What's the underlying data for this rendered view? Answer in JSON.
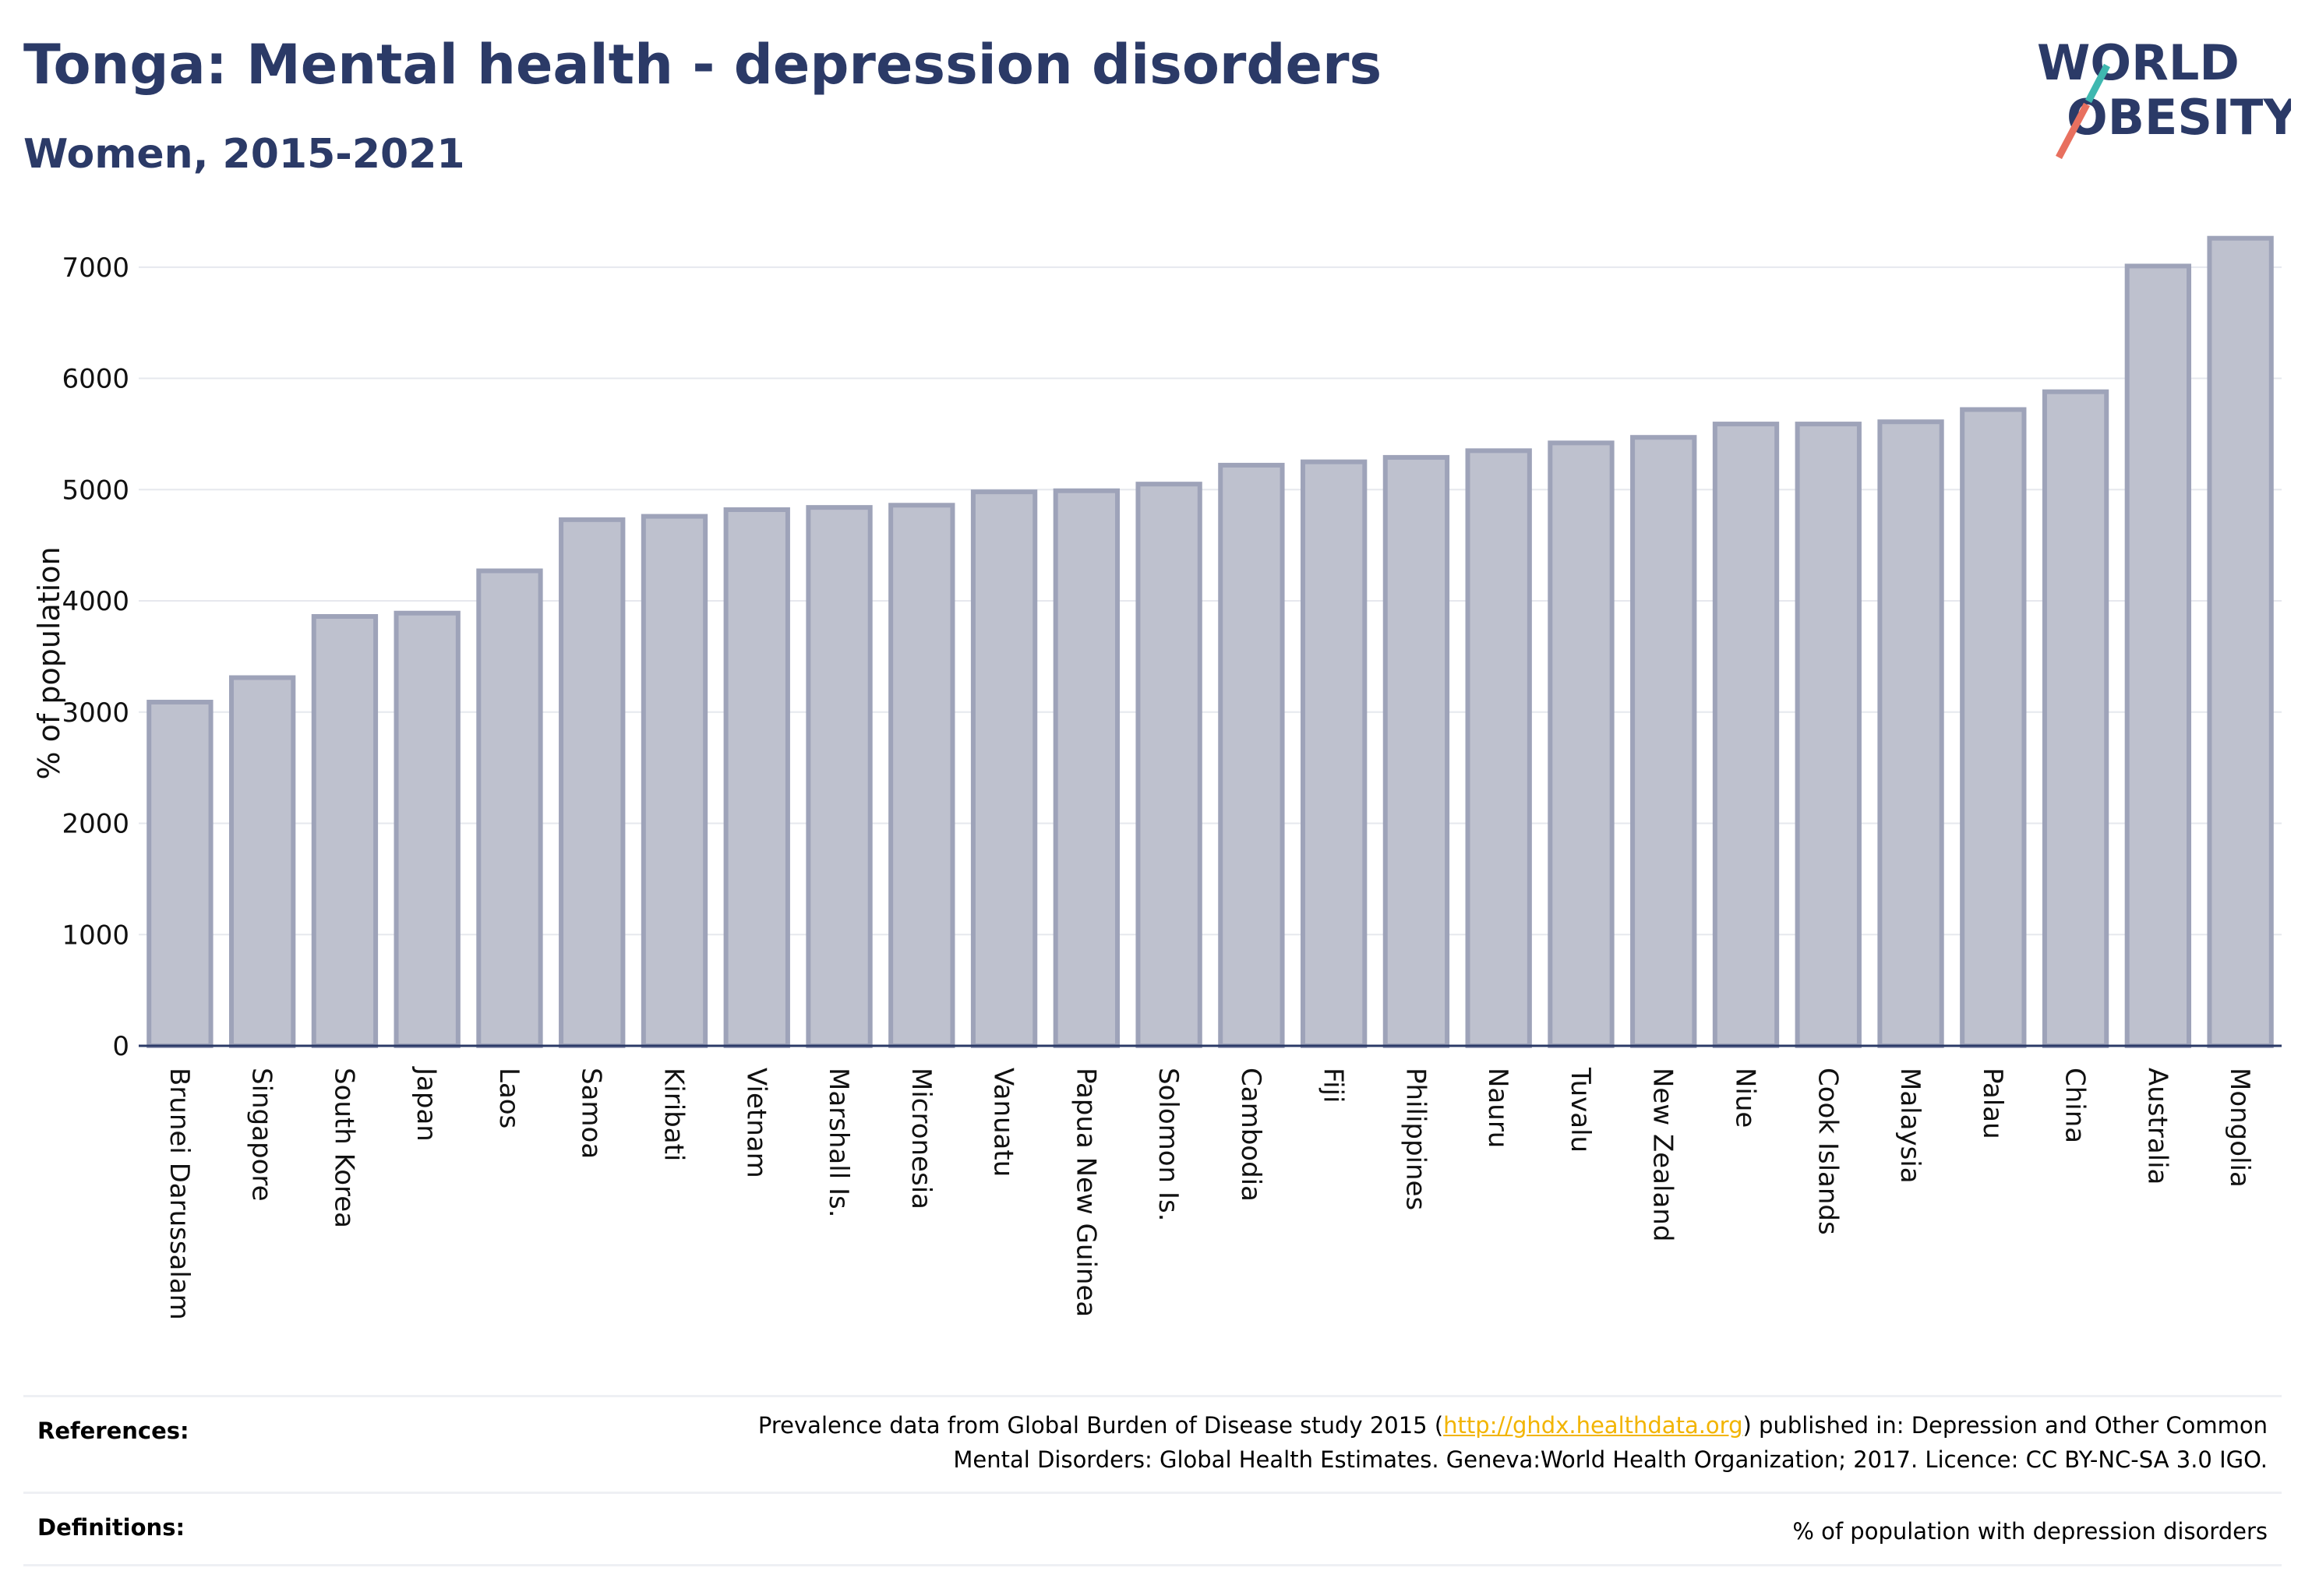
{
  "header": {
    "title": "Tonga: Mental health - depression disorders",
    "subtitle": "Women, 2015-2021"
  },
  "logo": {
    "line1": "WORLD",
    "line2": "OBESITY",
    "colors": {
      "text": "#2b3a67",
      "slash_red": "#e8705f",
      "slash_teal": "#3fb8b0"
    }
  },
  "chart_data": {
    "type": "bar",
    "title": "",
    "xlabel": "",
    "ylabel": "% of population",
    "ylim": [
      0,
      7300
    ],
    "yticks": [
      0,
      1000,
      2000,
      3000,
      4000,
      5000,
      6000,
      7000
    ],
    "grid": true,
    "categories": [
      "Brunei Darussalam",
      "Singapore",
      "South Korea",
      "Japan",
      "Laos",
      "Samoa",
      "Kiribati",
      "Vietnam",
      "Marshall Is.",
      "Micronesia",
      "Vanuatu",
      "Papua New Guinea",
      "Solomon Is.",
      "Cambodia",
      "Fiji",
      "Philippines",
      "Nauru",
      "Tuvalu",
      "New Zealand",
      "Niue",
      "Cook Islands",
      "Malaysia",
      "Palau",
      "China",
      "Australia",
      "Mongolia"
    ],
    "values": [
      3090,
      3310,
      3860,
      3890,
      4270,
      4730,
      4760,
      4820,
      4840,
      4860,
      4980,
      4990,
      5050,
      5220,
      5250,
      5290,
      5350,
      5420,
      5470,
      5590,
      5590,
      5610,
      5720,
      5880,
      7010,
      7260
    ],
    "colors": {
      "bar_fill": "#bec1ce",
      "bar_edge": "#9ea3b9",
      "grid": "#e6e8ee",
      "axis": "#2b3a67"
    }
  },
  "references": {
    "references_label": "References:",
    "references_line1_before": "Prevalence data from Global Burden of Disease study 2015 (",
    "references_link": "http://ghdx.healthdata.org",
    "references_line1_after": ") published in: Depression and Other Common",
    "references_line2": "Mental Disorders: Global Health Estimates. Geneva:World Health Organization; 2017. Licence: CC BY-NC-SA 3.0 IGO.",
    "definitions_label": "Definitions:",
    "definitions_text": "% of population with depression disorders"
  }
}
